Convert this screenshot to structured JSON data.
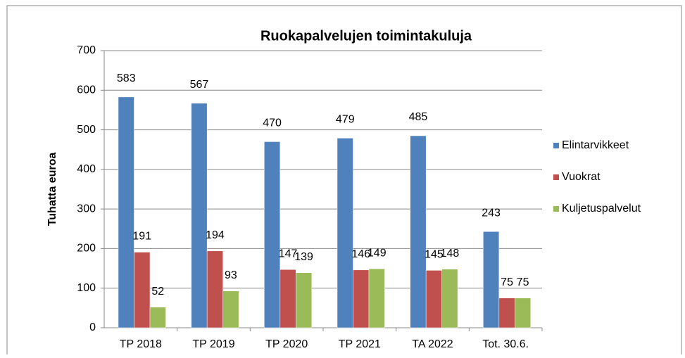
{
  "chart_data": {
    "type": "bar",
    "title": "Ruokapalvelujen toimintakuluja",
    "y_label": "Tuhatta euroa",
    "categories": [
      "TP 2018",
      "TP 2019",
      "TP 2020",
      "TP 2021",
      "TA 2022",
      "Tot. 30.6."
    ],
    "series": [
      {
        "name": "Elintarvikkeet",
        "color": "#4f81bd",
        "values": [
          583,
          567,
          470,
          479,
          485,
          243
        ]
      },
      {
        "name": "Vuokrat",
        "color": "#c0504d",
        "values": [
          191,
          194,
          147,
          146,
          145,
          75
        ]
      },
      {
        "name": "Kuljetuspalvelut",
        "color": "#9bbb59",
        "values": [
          52,
          93,
          139,
          149,
          148,
          75
        ]
      }
    ],
    "ylim": [
      0,
      700
    ],
    "yticks": [
      0,
      100,
      200,
      300,
      400,
      500,
      600,
      700
    ],
    "grid": true
  }
}
